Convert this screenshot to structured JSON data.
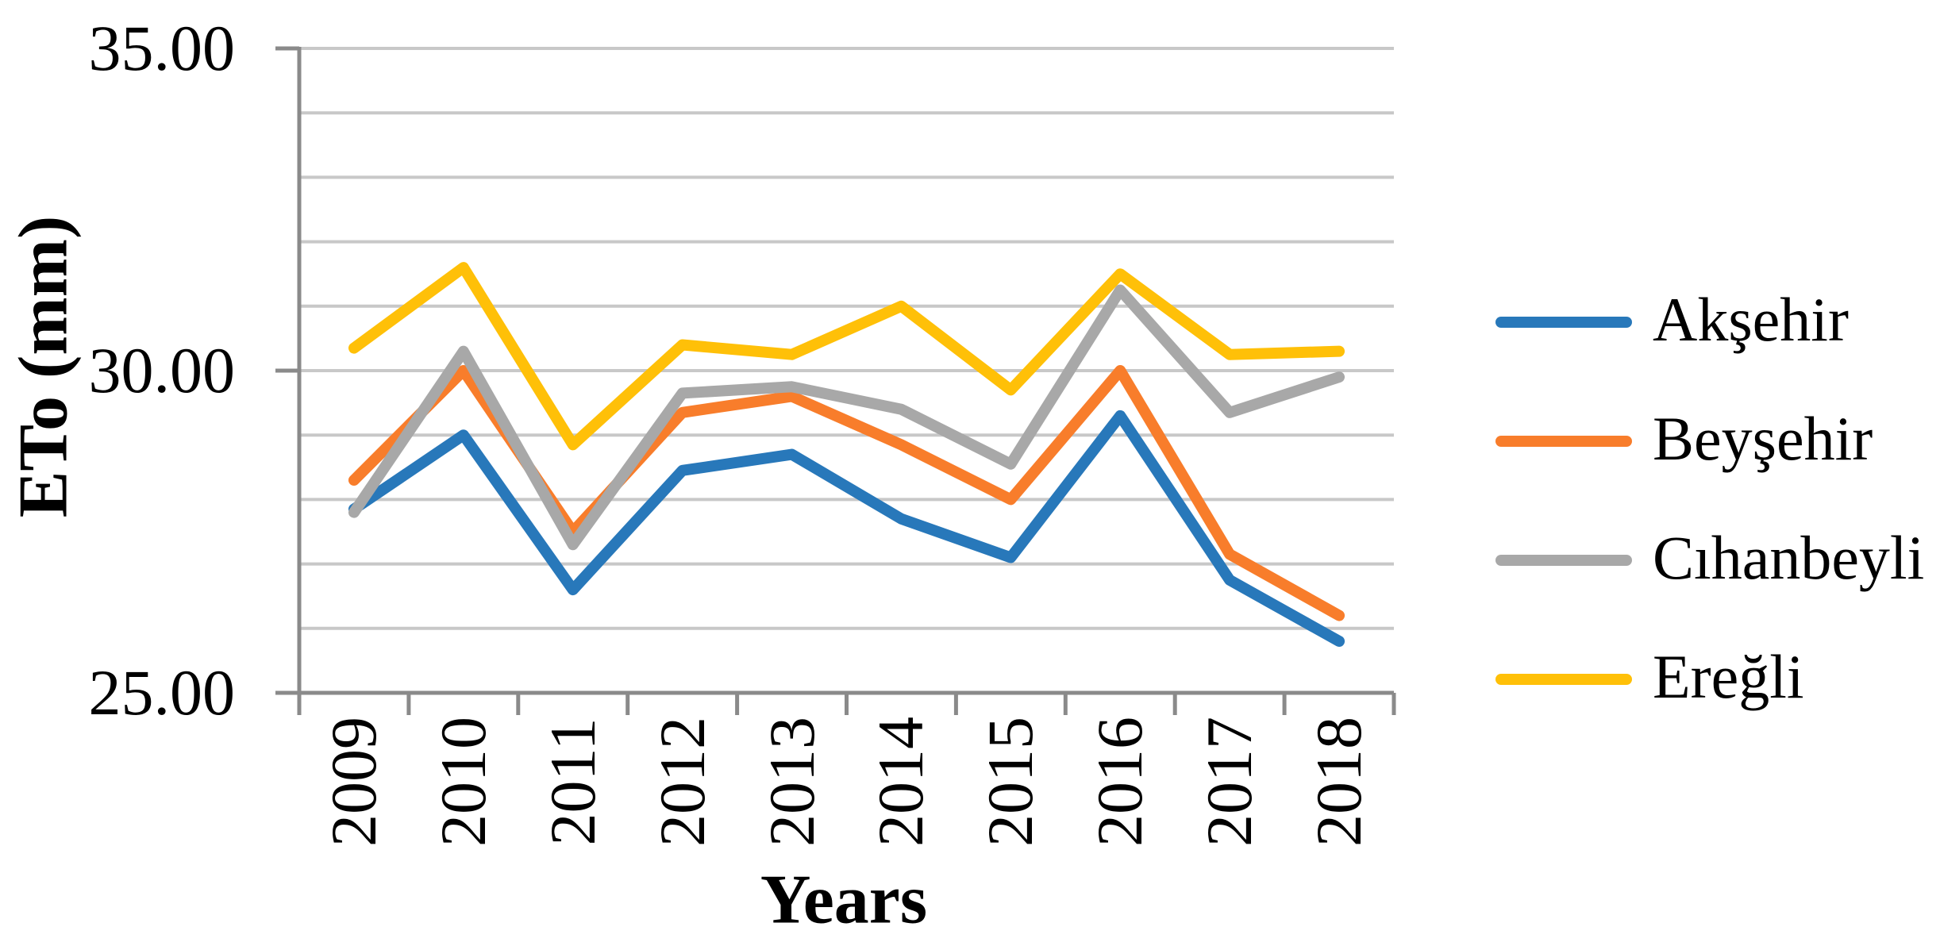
{
  "chart_data": {
    "type": "line",
    "title": "",
    "xlabel": "Years",
    "ylabel": "ETo (mm)",
    "categories": [
      "2009",
      "2010",
      "2011",
      "2012",
      "2013",
      "2014",
      "2015",
      "2016",
      "2017",
      "2018"
    ],
    "ylim": [
      25,
      35
    ],
    "grid": true,
    "gridline_step": 1.0,
    "legend_position": "right",
    "yticks": [
      {
        "value": 35,
        "label": "35.00"
      },
      {
        "value": 30,
        "label": "30.00"
      },
      {
        "value": 25,
        "label": "25.00"
      }
    ],
    "series": [
      {
        "name": "Akşehir",
        "color": "#2878BA",
        "values": [
          27.85,
          29.0,
          26.6,
          28.45,
          28.7,
          27.7,
          27.1,
          29.3,
          26.75,
          25.8
        ]
      },
      {
        "name": "Beyşehir",
        "color": "#F87D2B",
        "values": [
          28.3,
          30.0,
          27.5,
          29.35,
          29.6,
          28.85,
          28.0,
          30.0,
          27.15,
          26.2
        ]
      },
      {
        "name": "Cıhanbeyli",
        "color": "#A8A8A8",
        "values": [
          27.8,
          30.3,
          27.3,
          29.65,
          29.75,
          29.4,
          28.55,
          31.25,
          29.35,
          29.9
        ]
      },
      {
        "name": "Ereğli",
        "color": "#FFC008",
        "values": [
          30.35,
          31.6,
          28.85,
          30.4,
          30.25,
          31.0,
          29.7,
          31.5,
          30.25,
          30.3
        ]
      }
    ],
    "colors": {
      "axis": "#8A8A8A",
      "gridline": "#C8C8C8",
      "text": "#000000",
      "background": "#FFFFFF"
    }
  }
}
